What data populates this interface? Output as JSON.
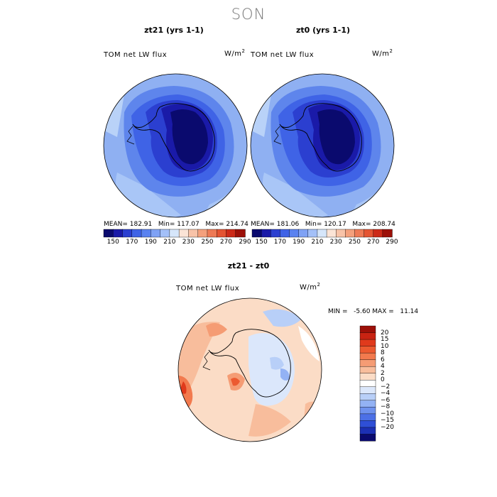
{
  "page_title": "SON",
  "panels": [
    {
      "title": "zt21 (yrs 1-1)",
      "variable": "TOM net LW flux",
      "units": "W/m",
      "units_sup": "2",
      "mean_label": "MEAN=",
      "mean": "182.91",
      "min_label": "Min=",
      "min": "117.07",
      "max_label": "Max=",
      "max": "214.74"
    },
    {
      "title": "zt0 (yrs 1-1)",
      "variable": "TOM net LW flux",
      "units": "W/m",
      "units_sup": "2",
      "mean_label": "MEAN=",
      "mean": "181.06",
      "min_label": "Min=",
      "min": "120.17",
      "max_label": "Max=",
      "max": "208.74"
    }
  ],
  "abs_colorbar": {
    "colors": [
      "#0a0a6e",
      "#1a1aa8",
      "#2b3fd0",
      "#3f63e6",
      "#5a82f0",
      "#7fa2f5",
      "#a3c0f8",
      "#d6e6fa",
      "#fbe4d6",
      "#f8c3a8",
      "#f4a07c",
      "#ee7a55",
      "#e45432",
      "#cc2a18",
      "#9c1008"
    ],
    "tick_labels": [
      "150",
      "170",
      "190",
      "210",
      "230",
      "250",
      "270",
      "290"
    ]
  },
  "diff_panel": {
    "title": "zt21 - zt0",
    "variable": "TOM net LW flux",
    "units": "W/m",
    "units_sup": "2",
    "stats": "MIN =   -5.60 MAX =   11.14",
    "colorbar": {
      "colors_top_to_bottom": [
        "#9c1008",
        "#c82312",
        "#e03a1c",
        "#ec5a30",
        "#f27a4e",
        "#f59c74",
        "#f8bd9c",
        "#fbdcc6",
        "#ffffff",
        "#dbe7fb",
        "#b8cff8",
        "#93b2f4",
        "#6f92ee",
        "#4c70e6",
        "#2f4fd6",
        "#1c30b4",
        "#0a0a6e"
      ],
      "tick_labels": [
        "20",
        "15",
        "10",
        "8",
        "6",
        "4",
        "2",
        "0",
        "−2",
        "−4",
        "−6",
        "−8",
        "−10",
        "−15",
        "−20"
      ]
    }
  }
}
